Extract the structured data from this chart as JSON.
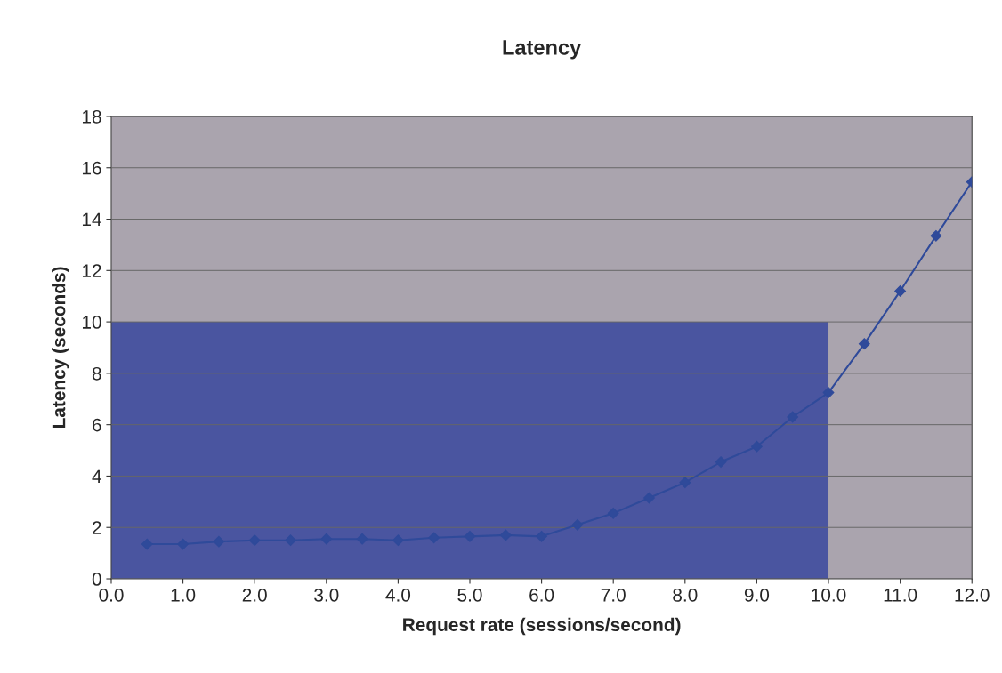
{
  "chart_data": {
    "type": "line",
    "title": "Latency",
    "xlabel": "Request rate (sessions/second)",
    "ylabel": "Latency (seconds)",
    "xlim": [
      0,
      12
    ],
    "xticks": [
      {
        "value": 0,
        "label": "0.0"
      },
      {
        "value": 1,
        "label": "1.0"
      },
      {
        "value": 2,
        "label": "2.0"
      },
      {
        "value": 3,
        "label": "3.0"
      },
      {
        "value": 4,
        "label": "4.0"
      },
      {
        "value": 5,
        "label": "5.0"
      },
      {
        "value": 6,
        "label": "6.0"
      },
      {
        "value": 7,
        "label": "7.0"
      },
      {
        "value": 8,
        "label": "8.0"
      },
      {
        "value": 9,
        "label": "9.0"
      },
      {
        "value": 10,
        "label": "10.0"
      },
      {
        "value": 11,
        "label": "11.0"
      },
      {
        "value": 12,
        "label": "12.0"
      }
    ],
    "ylim": [
      0,
      18
    ],
    "yticks": [
      0,
      2,
      4,
      6,
      8,
      10,
      12,
      14,
      16,
      18
    ],
    "grid": "y",
    "legend": false,
    "series": [
      {
        "type": "area",
        "color": "#4a55a0",
        "x": [
          0,
          10
        ],
        "values": [
          10,
          10
        ]
      },
      {
        "color": "#2f4a9a",
        "marker": "diamond",
        "line_style": "solid",
        "x": [
          0.5,
          1.0,
          1.5,
          2.0,
          2.5,
          3.0,
          3.5,
          4.0,
          4.5,
          5.0,
          5.5,
          6.0,
          6.5,
          7.0,
          7.5,
          8.0,
          8.5,
          9.0,
          9.5,
          10.0,
          10.5,
          11.0,
          11.5,
          12.0
        ],
        "values": [
          1.35,
          1.35,
          1.45,
          1.5,
          1.5,
          1.55,
          1.55,
          1.5,
          1.6,
          1.65,
          1.7,
          1.65,
          2.1,
          2.55,
          3.15,
          3.75,
          4.55,
          5.15,
          6.3,
          7.25,
          9.15,
          11.2,
          13.35,
          15.45
        ]
      }
    ]
  }
}
